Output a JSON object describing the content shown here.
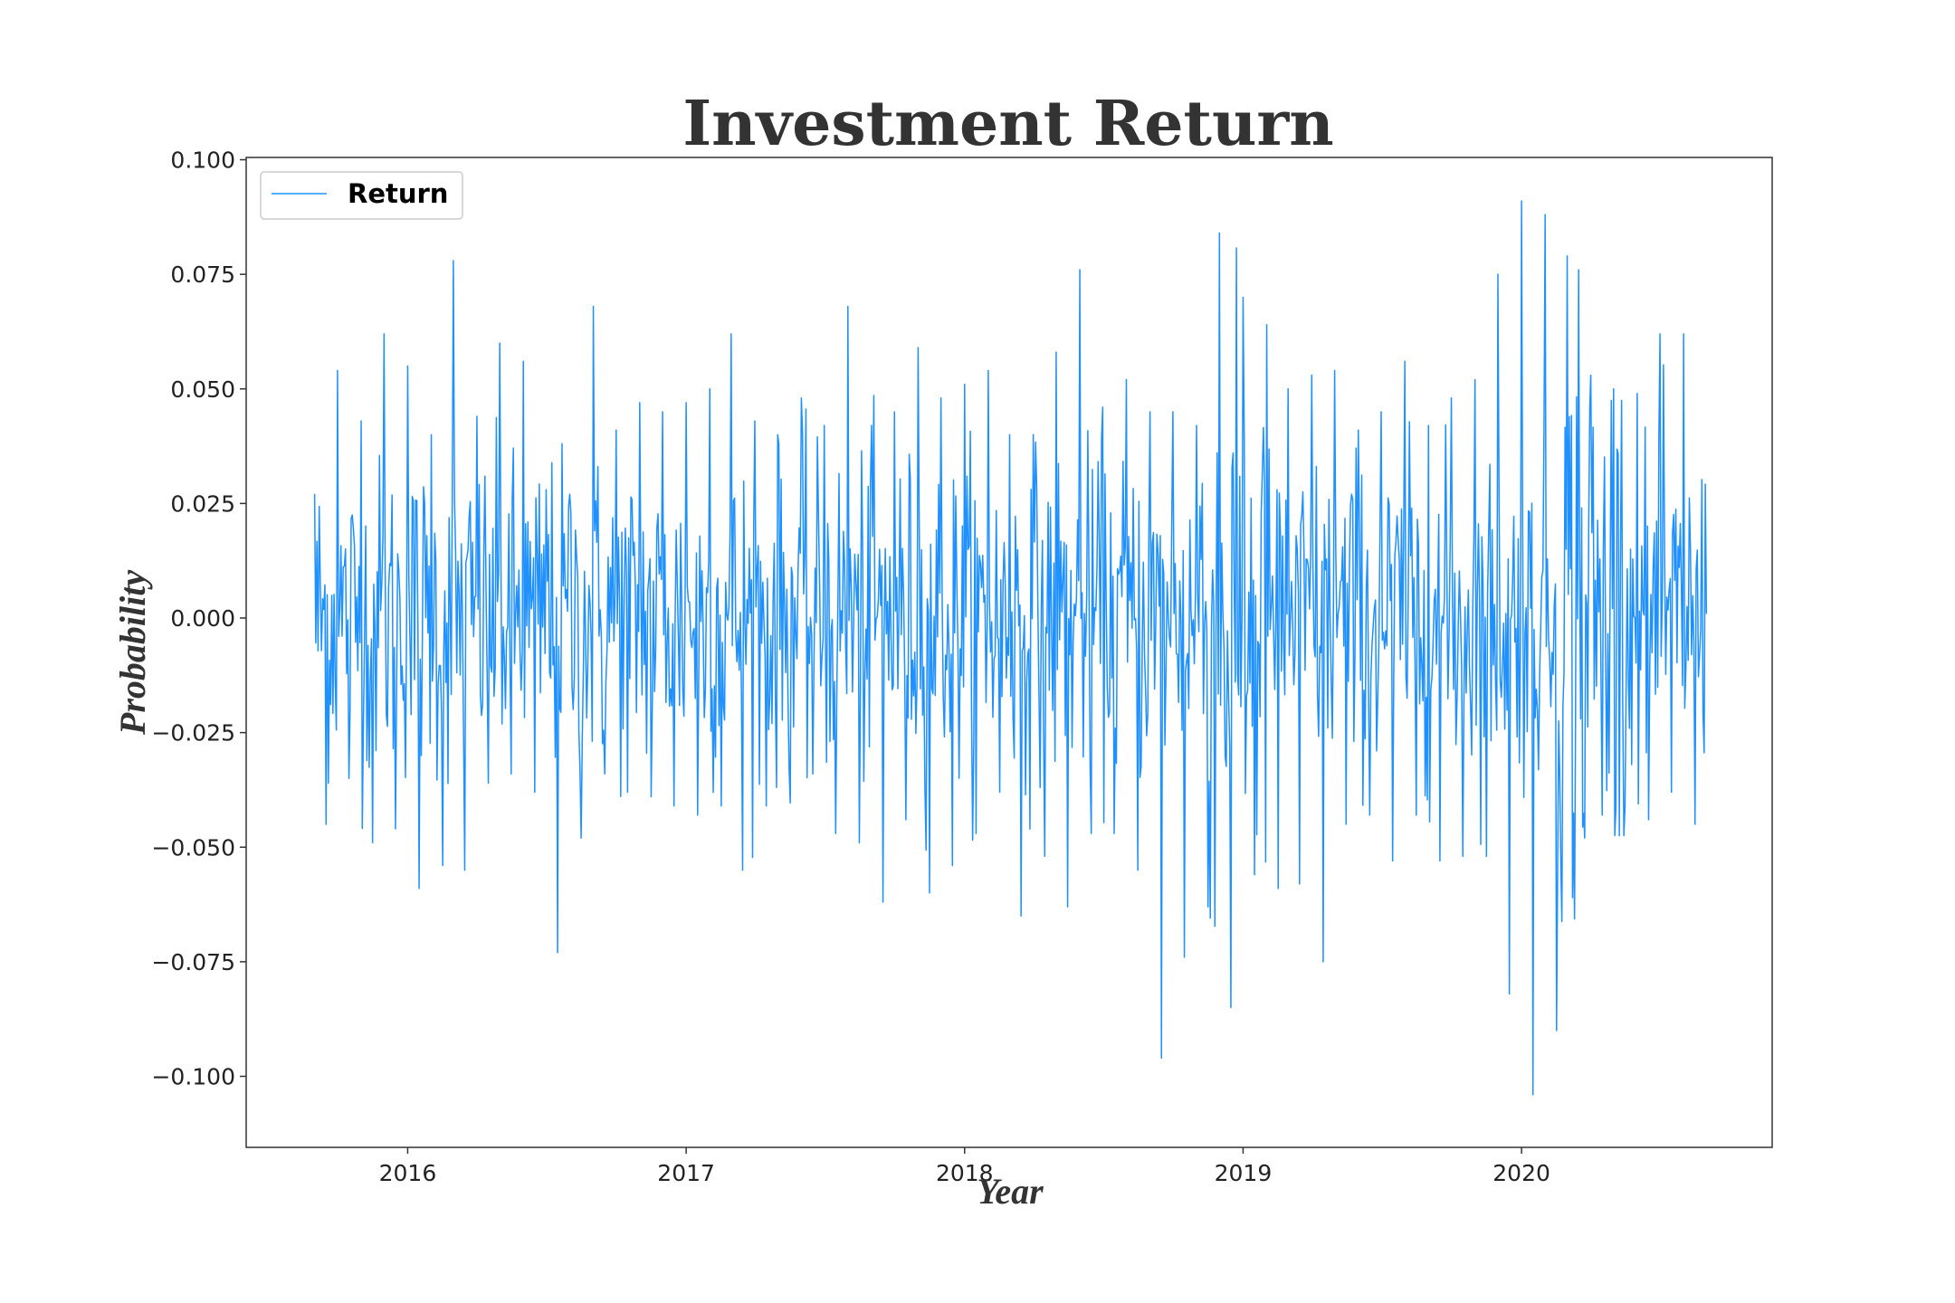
{
  "chart_data": {
    "type": "line",
    "title": "Investment Return",
    "xlabel": "Year",
    "ylabel": "Probability",
    "x_range": [
      "2015-06-20",
      "2020-10-31"
    ],
    "xlim_years": [
      2015.42,
      2020.9
    ],
    "ylim": [
      -0.1155,
      0.1005
    ],
    "yticks": [
      0.1,
      0.075,
      0.05,
      0.025,
      0.0,
      -0.025,
      -0.05,
      -0.075,
      -0.1
    ],
    "ytick_labels": [
      "0.100",
      "0.075",
      "0.050",
      "0.025",
      "0.000",
      "−0.025",
      "−0.050",
      "−0.075",
      "−0.100"
    ],
    "xticks": [
      2016,
      2017,
      2018,
      2019,
      2020
    ],
    "xtick_labels": [
      "2016",
      "2017",
      "2018",
      "2019",
      "2020"
    ],
    "grid": false,
    "legend_position": "top-left",
    "series": [
      {
        "name": "Return",
        "color": "#1e90ff",
        "x": [
          "2015-09-01",
          "2015-09-16",
          "2015-10-01",
          "2015-10-16",
          "2015-11-01",
          "2015-11-16",
          "2015-12-01",
          "2015-12-16",
          "2016-01-01",
          "2016-01-16",
          "2016-02-01",
          "2016-02-16",
          "2016-03-01",
          "2016-03-16",
          "2016-04-01",
          "2016-04-16",
          "2016-05-01",
          "2016-05-16",
          "2016-06-01",
          "2016-06-16",
          "2016-07-01",
          "2016-07-16",
          "2016-08-01",
          "2016-08-16",
          "2016-09-01",
          "2016-09-16",
          "2016-10-01",
          "2016-10-16",
          "2016-11-01",
          "2016-11-16",
          "2016-12-01",
          "2016-12-16",
          "2017-01-01",
          "2017-01-16",
          "2017-02-01",
          "2017-02-16",
          "2017-03-01",
          "2017-03-16",
          "2017-04-01",
          "2017-04-16",
          "2017-05-01",
          "2017-05-16",
          "2017-06-01",
          "2017-06-16",
          "2017-07-01",
          "2017-07-16",
          "2017-08-01",
          "2017-08-16",
          "2017-09-01",
          "2017-09-16",
          "2017-10-01",
          "2017-10-16",
          "2017-11-01",
          "2017-11-16",
          "2017-12-01",
          "2017-12-16",
          "2018-01-01",
          "2018-01-16",
          "2018-02-01",
          "2018-02-16",
          "2018-03-01",
          "2018-03-16",
          "2018-04-01",
          "2018-04-16",
          "2018-05-01",
          "2018-05-16",
          "2018-06-01",
          "2018-06-16",
          "2018-07-01",
          "2018-07-16",
          "2018-08-01",
          "2018-08-16",
          "2018-09-01",
          "2018-09-16",
          "2018-10-01",
          "2018-10-16",
          "2018-11-01",
          "2018-11-16",
          "2018-12-01",
          "2018-12-16",
          "2019-01-01",
          "2019-01-16",
          "2019-02-01",
          "2019-02-16",
          "2019-03-01",
          "2019-03-16",
          "2019-04-01",
          "2019-04-16",
          "2019-05-01",
          "2019-05-16",
          "2019-06-01",
          "2019-06-16",
          "2019-07-01",
          "2019-07-16",
          "2019-08-01",
          "2019-08-16",
          "2019-09-01",
          "2019-09-16",
          "2019-10-01",
          "2019-10-16",
          "2019-11-01",
          "2019-11-16",
          "2019-12-01",
          "2019-12-16",
          "2020-01-01",
          "2020-01-16",
          "2020-02-01",
          "2020-02-16",
          "2020-03-01",
          "2020-03-08",
          "2020-03-16",
          "2020-03-24",
          "2020-04-01",
          "2020-04-16",
          "2020-05-01",
          "2020-05-16",
          "2020-06-01",
          "2020-06-16",
          "2020-07-01",
          "2020-07-16",
          "2020-08-01",
          "2020-08-16",
          "2020-08-31"
        ],
        "y": [
          0.027,
          -0.045,
          0.054,
          -0.035,
          0.043,
          -0.049,
          0.062,
          -0.046,
          0.055,
          -0.059,
          0.04,
          -0.054,
          0.078,
          -0.055,
          0.044,
          -0.036,
          0.06,
          -0.034,
          0.056,
          -0.038,
          0.028,
          -0.073,
          0.027,
          -0.048,
          0.068,
          -0.034,
          0.041,
          -0.038,
          0.047,
          -0.039,
          0.045,
          -0.041,
          0.047,
          -0.043,
          0.05,
          -0.041,
          0.062,
          -0.055,
          0.043,
          -0.041,
          0.04,
          -0.033,
          0.048,
          -0.034,
          0.042,
          -0.047,
          0.068,
          -0.049,
          0.042,
          -0.062,
          0.045,
          -0.044,
          0.059,
          -0.06,
          0.048,
          -0.054,
          0.051,
          -0.047,
          0.054,
          -0.038,
          0.04,
          -0.065,
          0.04,
          -0.052,
          0.058,
          -0.063,
          0.076,
          -0.047,
          0.046,
          -0.047,
          0.052,
          -0.055,
          0.045,
          -0.096,
          0.045,
          -0.074,
          0.042,
          -0.063,
          0.084,
          -0.085,
          0.07,
          -0.056,
          0.064,
          -0.059,
          0.05,
          -0.058,
          0.053,
          -0.075,
          0.054,
          -0.045,
          0.041,
          -0.043,
          0.045,
          -0.053,
          0.056,
          -0.043,
          0.042,
          -0.053,
          0.048,
          -0.052,
          0.052,
          -0.052,
          0.075,
          -0.082,
          0.091,
          -0.104,
          0.088,
          -0.09,
          0.079,
          -0.061,
          0.076,
          -0.048,
          0.053,
          -0.043,
          0.05,
          -0.041,
          0.049,
          -0.044,
          0.062,
          -0.038,
          0.062,
          -0.045,
          0.001
        ]
      }
    ]
  }
}
